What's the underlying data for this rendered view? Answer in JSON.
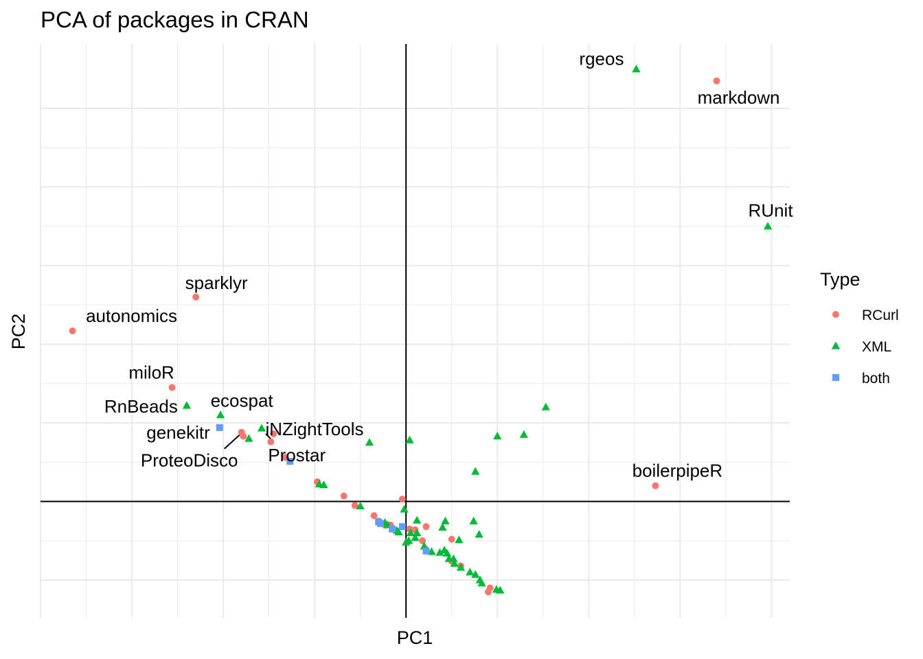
{
  "chart_data": {
    "type": "scatter",
    "title": "PCA of packages in CRAN",
    "xlabel": "PC1",
    "ylabel": "PC2",
    "xlim": [
      -4.0,
      4.2
    ],
    "ylim": [
      -1.48,
      5.82
    ],
    "grid": true,
    "axis_tick_labels_shown": false,
    "reference_lines": {
      "x": 0,
      "y": 0
    },
    "legend": {
      "title": "Type",
      "placement": "right",
      "entries": [
        {
          "name": "RCurl",
          "shape": "circle",
          "color": "#F8766D"
        },
        {
          "name": "XML",
          "shape": "triangle",
          "color": "#00BA38"
        },
        {
          "name": "both",
          "shape": "square",
          "color": "#619CFF"
        }
      ]
    },
    "series": [
      {
        "name": "RCurl",
        "color": "#F8766D",
        "shape": "circle",
        "points": [
          {
            "x": 3.4,
            "y": 5.35,
            "label": "markdown"
          },
          {
            "x": 2.73,
            "y": 0.2,
            "label": "boilerpipeR"
          },
          {
            "x": -2.3,
            "y": 2.6,
            "label": "sparklyr"
          },
          {
            "x": -3.65,
            "y": 2.17,
            "label": "autonomics"
          },
          {
            "x": -2.56,
            "y": 1.45,
            "label": "miloR"
          },
          {
            "x": -1.8,
            "y": 0.88,
            "label": "ProteoDisco"
          },
          {
            "x": -1.78,
            "y": 0.83
          },
          {
            "x": -1.45,
            "y": 0.86
          },
          {
            "x": -1.48,
            "y": 0.76
          },
          {
            "x": -1.32,
            "y": 0.56
          },
          {
            "x": -0.97,
            "y": 0.25
          },
          {
            "x": -0.68,
            "y": 0.07
          },
          {
            "x": -0.56,
            "y": -0.05
          },
          {
            "x": -0.35,
            "y": -0.18
          },
          {
            "x": -0.3,
            "y": -0.25
          },
          {
            "x": -0.27,
            "y": -0.28
          },
          {
            "x": -0.23,
            "y": -0.3
          },
          {
            "x": -0.17,
            "y": -0.3
          },
          {
            "x": -0.04,
            "y": 0.03
          },
          {
            "x": 0.04,
            "y": -0.35
          },
          {
            "x": 0.1,
            "y": -0.36
          },
          {
            "x": 0.22,
            "y": -0.32
          },
          {
            "x": 0.18,
            "y": -0.5
          },
          {
            "x": 0.5,
            "y": -0.48
          },
          {
            "x": 0.5,
            "y": -0.76
          },
          {
            "x": 0.6,
            "y": -0.82
          },
          {
            "x": 0.9,
            "y": -1.15
          },
          {
            "x": 0.92,
            "y": -1.1
          }
        ]
      },
      {
        "name": "XML",
        "color": "#00BA38",
        "shape": "triangle",
        "points": [
          {
            "x": 2.52,
            "y": 5.5,
            "label": "rgeos"
          },
          {
            "x": 3.96,
            "y": 3.5,
            "label": "RUnit"
          },
          {
            "x": -2.4,
            "y": 1.22,
            "label": "RnBeads"
          },
          {
            "x": -2.03,
            "y": 1.1,
            "label": "ecospat"
          },
          {
            "x": -1.58,
            "y": 0.93,
            "label": "iNZightTools"
          },
          {
            "x": -1.72,
            "y": 0.8
          },
          {
            "x": -0.4,
            "y": 0.75
          },
          {
            "x": 0.04,
            "y": 0.78
          },
          {
            "x": 1.0,
            "y": 0.83
          },
          {
            "x": 1.29,
            "y": 0.85
          },
          {
            "x": 1.53,
            "y": 1.2
          },
          {
            "x": 0.76,
            "y": 0.38
          },
          {
            "x": -0.95,
            "y": 0.22
          },
          {
            "x": -0.9,
            "y": 0.21
          },
          {
            "x": -0.5,
            "y": -0.06
          },
          {
            "x": -0.02,
            "y": -0.1
          },
          {
            "x": -0.23,
            "y": -0.27
          },
          {
            "x": -0.2,
            "y": -0.3
          },
          {
            "x": -0.1,
            "y": -0.37
          },
          {
            "x": -0.08,
            "y": -0.39
          },
          {
            "x": 0.05,
            "y": -0.4
          },
          {
            "x": 0.12,
            "y": -0.24
          },
          {
            "x": 0.12,
            "y": -0.4
          },
          {
            "x": 0.1,
            "y": -0.46
          },
          {
            "x": 0.03,
            "y": -0.5
          },
          {
            "x": 0.0,
            "y": -0.52
          },
          {
            "x": 0.2,
            "y": -0.57
          },
          {
            "x": 0.23,
            "y": -0.62
          },
          {
            "x": 0.28,
            "y": -0.64
          },
          {
            "x": 0.37,
            "y": -0.65
          },
          {
            "x": 0.4,
            "y": -0.33
          },
          {
            "x": 0.43,
            "y": -0.25
          },
          {
            "x": 0.42,
            "y": -0.62
          },
          {
            "x": 0.45,
            "y": -0.66
          },
          {
            "x": 0.47,
            "y": -0.73
          },
          {
            "x": 0.52,
            "y": -0.73
          },
          {
            "x": 0.53,
            "y": -0.79
          },
          {
            "x": 0.58,
            "y": -0.49
          },
          {
            "x": 0.6,
            "y": -0.84
          },
          {
            "x": 0.7,
            "y": -0.9
          },
          {
            "x": 0.74,
            "y": -0.25
          },
          {
            "x": 0.76,
            "y": -0.93
          },
          {
            "x": 0.8,
            "y": -0.42
          },
          {
            "x": 0.81,
            "y": -1.0
          },
          {
            "x": 0.83,
            "y": -1.04
          },
          {
            "x": 0.99,
            "y": -1.12
          },
          {
            "x": 1.03,
            "y": -1.13
          }
        ]
      },
      {
        "name": "both",
        "color": "#619CFF",
        "shape": "square",
        "points": [
          {
            "x": -2.04,
            "y": 0.94,
            "label": "genekitr"
          },
          {
            "x": -1.27,
            "y": 0.51,
            "label": "Prostar"
          },
          {
            "x": -0.3,
            "y": -0.26
          },
          {
            "x": -0.28,
            "y": -0.28
          },
          {
            "x": -0.15,
            "y": -0.35
          },
          {
            "x": -0.04,
            "y": -0.32
          },
          {
            "x": 0.22,
            "y": -0.63
          }
        ]
      }
    ],
    "annotations": [
      {
        "text": "rgeos"
      },
      {
        "text": "markdown"
      },
      {
        "text": "RUnit"
      },
      {
        "text": "sparklyr"
      },
      {
        "text": "autonomics"
      },
      {
        "text": "miloR"
      },
      {
        "text": "RnBeads"
      },
      {
        "text": "ecospat"
      },
      {
        "text": "iNZightTools"
      },
      {
        "text": "genekitr"
      },
      {
        "text": "ProteoDisco"
      },
      {
        "text": "Prostar"
      },
      {
        "text": "boilerpipeR"
      }
    ]
  }
}
